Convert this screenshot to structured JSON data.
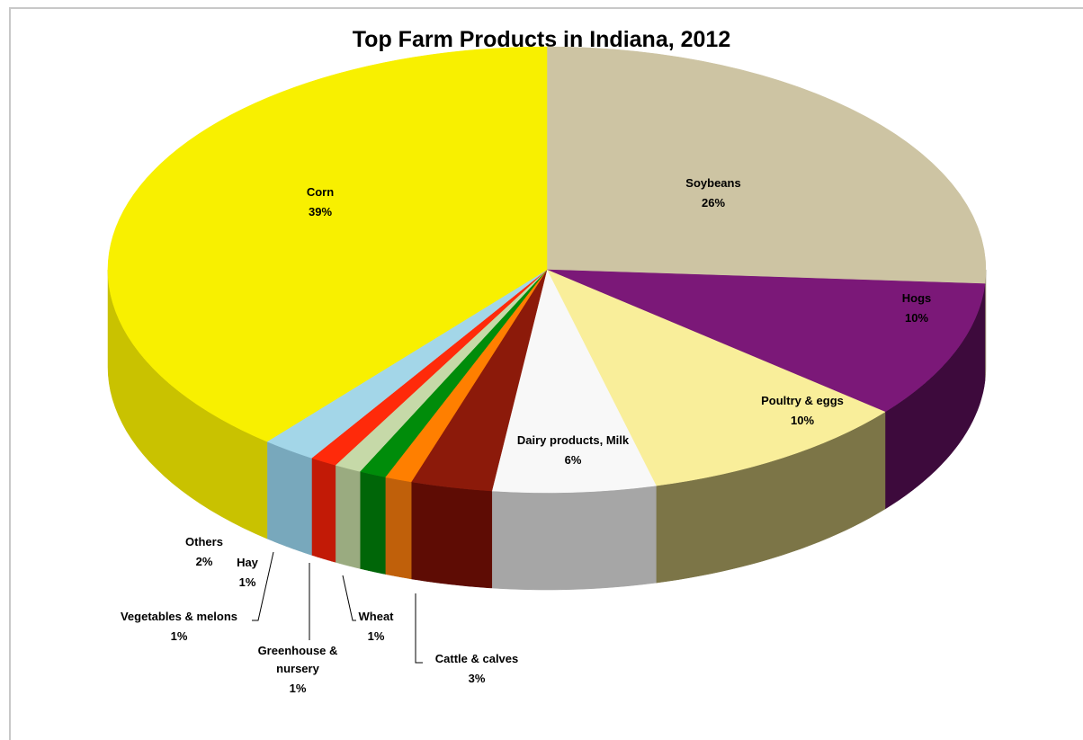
{
  "chart_data": {
    "type": "pie",
    "title": "Top Farm Products in Indiana, 2012",
    "style": "3d",
    "slices": [
      {
        "name": "Soybeans",
        "value": 26,
        "pct_label": "26%",
        "color": "#cdc4a3",
        "side_color": "#9c9577"
      },
      {
        "name": "Hogs",
        "value": 10,
        "pct_label": "10%",
        "color": "#7b1878",
        "side_color": "#3d0a3c"
      },
      {
        "name": "Poultry & eggs",
        "value": 10,
        "pct_label": "10%",
        "color": "#f9ee9a",
        "side_color": "#7c7547"
      },
      {
        "name": "Dairy products, Milk",
        "value": 6,
        "pct_label": "6%",
        "color": "#f8f8f8",
        "side_color": "#a6a6a6"
      },
      {
        "name": "Cattle & calves",
        "value": 3,
        "pct_label": "3%",
        "color": "#8c1a0a",
        "side_color": "#5e0c04"
      },
      {
        "name": "Wheat",
        "value": 1,
        "pct_label": "1%",
        "color": "#ff7f00",
        "side_color": "#c0600a"
      },
      {
        "name": "Greenhouse & nursery",
        "value": 1,
        "pct_label": "1%",
        "color": "#008c0a",
        "side_color": "#006608"
      },
      {
        "name": "Vegetables & melons",
        "value": 1,
        "pct_label": "1%",
        "color": "#c6d9a8",
        "side_color": "#9aab80"
      },
      {
        "name": "Hay",
        "value": 1,
        "pct_label": "1%",
        "color": "#ff2a0a",
        "side_color": "#c21a06"
      },
      {
        "name": "Others",
        "value": 2,
        "pct_label": "2%",
        "color": "#a3d6e8",
        "side_color": "#78a8bc"
      },
      {
        "name": "Corn",
        "value": 39,
        "pct_label": "39%",
        "color": "#f8f000",
        "side_color": "#c9c200"
      }
    ]
  }
}
